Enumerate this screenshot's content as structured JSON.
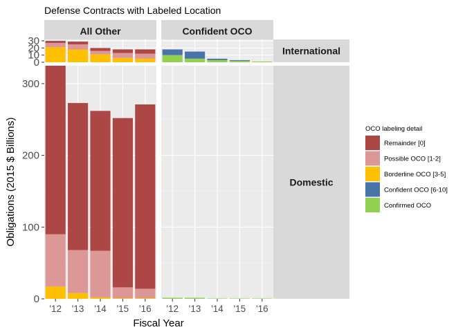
{
  "chart_data": {
    "type": "bar",
    "stacked": true,
    "faceted": true,
    "title": "Defense Contracts with Labeled Location",
    "xlabel": "Fiscal Year",
    "ylabel": "Obligations (2015 $ Billions)",
    "categories": [
      "'12",
      "'13",
      "'14",
      "'15",
      "'16"
    ],
    "facet_columns": [
      "All Other",
      "Confident OCO"
    ],
    "facet_rows": [
      "International",
      "Domestic"
    ],
    "row_ylim": {
      "International": [
        0,
        32
      ],
      "Domestic": [
        0,
        325
      ]
    },
    "row_yticks": {
      "International": [
        0,
        10,
        20,
        30
      ],
      "Domestic": [
        0,
        100,
        200,
        300
      ]
    },
    "legend": {
      "title": "OCO labeling detail",
      "position": "right",
      "items": [
        {
          "key": "remainder",
          "label": "Remainder [0]",
          "color": "#AC4745"
        },
        {
          "key": "possible",
          "label": "Possible OCO [1-2]",
          "color": "#DC9797"
        },
        {
          "key": "borderline",
          "label": "Borderline OCO [3-5]",
          "color": "#FFC000"
        },
        {
          "key": "confident",
          "label": "Confident OCO [6-10]",
          "color": "#4A74A9"
        },
        {
          "key": "confirmed",
          "label": "Confirmed OCO",
          "color": "#92D050"
        }
      ]
    },
    "panels": [
      {
        "row": "International",
        "col": "All Other",
        "series": [
          {
            "key": "borderline",
            "values": [
              21,
              18,
              11,
              6,
              5
            ]
          },
          {
            "key": "possible",
            "values": [
              6,
              7,
              5,
              7,
              7
            ]
          },
          {
            "key": "remainder",
            "values": [
              3,
              4,
              4,
              5,
              6
            ]
          }
        ]
      },
      {
        "row": "International",
        "col": "Confident OCO",
        "series": [
          {
            "key": "confirmed",
            "values": [
              10,
              5,
              3,
              2,
              1
            ]
          },
          {
            "key": "confident",
            "values": [
              8,
              10,
              2,
              1,
              0
            ]
          }
        ]
      },
      {
        "row": "Domestic",
        "col": "All Other",
        "series": [
          {
            "key": "borderline",
            "values": [
              17,
              8,
              2,
              1,
              1
            ]
          },
          {
            "key": "possible",
            "values": [
              73,
              60,
              65,
              15,
              13
            ]
          },
          {
            "key": "remainder",
            "values": [
              235,
              205,
              195,
              236,
              257
            ]
          }
        ]
      },
      {
        "row": "Domestic",
        "col": "Confident OCO",
        "series": [
          {
            "key": "confirmed",
            "values": [
              1.5,
              1.5,
              0.5,
              0.5,
              0.5
            ]
          }
        ]
      }
    ]
  }
}
